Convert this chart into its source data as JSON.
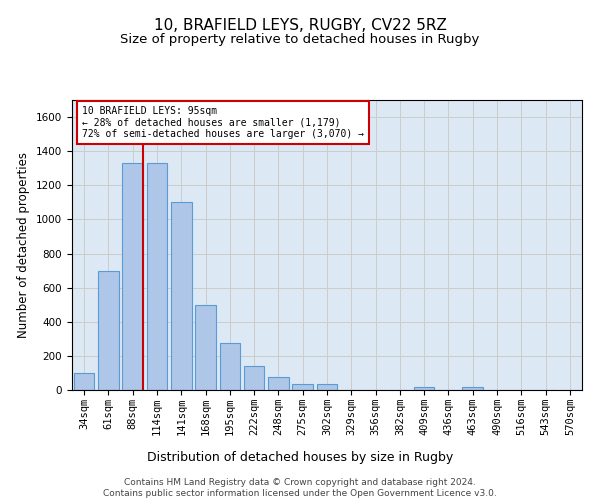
{
  "title": "10, BRAFIELD LEYS, RUGBY, CV22 5RZ",
  "subtitle": "Size of property relative to detached houses in Rugby",
  "xlabel": "Distribution of detached houses by size in Rugby",
  "ylabel": "Number of detached properties",
  "bar_labels": [
    "34sqm",
    "61sqm",
    "88sqm",
    "114sqm",
    "141sqm",
    "168sqm",
    "195sqm",
    "222sqm",
    "248sqm",
    "275sqm",
    "302sqm",
    "329sqm",
    "356sqm",
    "382sqm",
    "409sqm",
    "436sqm",
    "463sqm",
    "490sqm",
    "516sqm",
    "543sqm",
    "570sqm"
  ],
  "bar_values": [
    100,
    700,
    1330,
    1330,
    1100,
    500,
    275,
    140,
    75,
    35,
    35,
    0,
    0,
    0,
    15,
    0,
    20,
    0,
    0,
    0,
    0
  ],
  "bar_color": "#aec6e8",
  "bar_edge_color": "#5b9bd5",
  "ylim": [
    0,
    1700
  ],
  "yticks": [
    0,
    200,
    400,
    600,
    800,
    1000,
    1200,
    1400,
    1600
  ],
  "annotation_line1": "10 BRAFIELD LEYS: 95sqm",
  "annotation_line2": "← 28% of detached houses are smaller (1,179)",
  "annotation_line3": "72% of semi-detached houses are larger (3,070) →",
  "annotation_box_color": "#ffffff",
  "annotation_box_edge": "#cc0000",
  "vline_color": "#cc0000",
  "grid_color": "#cccccc",
  "background_color": "#dde8f5",
  "footer_line1": "Contains HM Land Registry data © Crown copyright and database right 2024.",
  "footer_line2": "Contains public sector information licensed under the Open Government Licence v3.0.",
  "title_fontsize": 11,
  "subtitle_fontsize": 9.5,
  "xlabel_fontsize": 9,
  "ylabel_fontsize": 8.5,
  "tick_fontsize": 7.5,
  "footer_fontsize": 6.5
}
